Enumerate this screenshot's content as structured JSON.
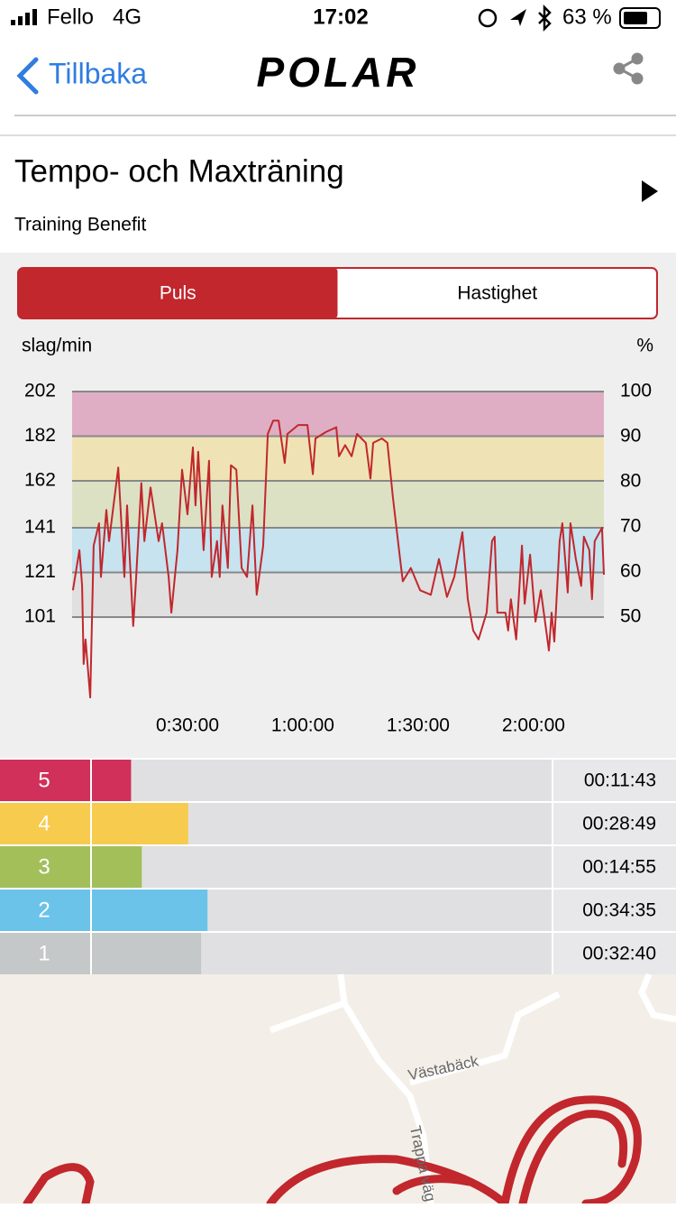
{
  "status_bar": {
    "carrier": "Fello",
    "network": "4G",
    "time": "17:02",
    "battery": "63 %"
  },
  "nav": {
    "back": "Tillbaka",
    "logo": "POLAR"
  },
  "header": {
    "title": "Tempo- och Maxträning",
    "subtitle": "Training Benefit"
  },
  "tabs": {
    "items": [
      "Puls",
      "Hastighet"
    ],
    "active": 0
  },
  "chart": {
    "type": "line",
    "y_label": "slag/min",
    "y2_label": "%",
    "color": "#c1272d",
    "xlim": [
      0,
      138.3
    ],
    "xticks": [
      {
        "value": 30,
        "label": "0:30:00"
      },
      {
        "value": 60,
        "label": "1:00:00"
      },
      {
        "value": 90,
        "label": "1:30:00"
      },
      {
        "value": 120,
        "label": "2:00:00"
      }
    ],
    "ylim": [
      60,
      202
    ],
    "yticks": [
      101,
      121,
      141,
      162,
      182,
      202
    ],
    "y2lim": [
      29.7,
      100
    ],
    "y2ticks": [
      50,
      60,
      70,
      80,
      90,
      100
    ],
    "band_colors": [
      "#e0e0e0",
      "#c6e3ef",
      "#dce1c4",
      "#efe3b5",
      "#dfaec4"
    ],
    "x": [
      0.2,
      1.9,
      2.6,
      3.0,
      3.5,
      4.7,
      5.6,
      7.0,
      7.5,
      8.9,
      9.6,
      12.0,
      13.6,
      14.3,
      15.9,
      16.6,
      18.0,
      18.8,
      20.4,
      22.5,
      23.4,
      25.1,
      25.8,
      27.4,
      28.6,
      30.0,
      31.4,
      32.1,
      32.8,
      34.2,
      35.6,
      36.3,
      37.7,
      38.4,
      39.1,
      40.5,
      41.3,
      42.7,
      44.1,
      45.5,
      46.9,
      48.0,
      49.7,
      50.9,
      52.3,
      53.7,
      55.3,
      56.0,
      58.8,
      61.2,
      62.6,
      63.3,
      66.1,
      68.7,
      69.4,
      71.0,
      72.7,
      74.1,
      76.4,
      77.6,
      78.3,
      80.6,
      82.0,
      83.4,
      85.3,
      86.0,
      88.1,
      90.5,
      93.3,
      95.4,
      97.5,
      99.4,
      101.5,
      102.9,
      104.3,
      105.7,
      107.8,
      109.2,
      109.9,
      110.6,
      112.7,
      113.4,
      114.1,
      115.5,
      117.0,
      117.7,
      119.1,
      120.5,
      121.9,
      124.0,
      124.7,
      125.4,
      126.8,
      127.5,
      128.9,
      129.6,
      131.0,
      132.4,
      133.1,
      134.5,
      135.2,
      135.9,
      137.8,
      138.3
    ],
    "values": [
      113,
      131,
      115,
      80,
      91,
      65,
      133,
      143,
      119,
      149,
      135,
      168,
      119,
      151,
      97,
      117,
      161,
      135,
      159,
      135,
      143,
      119,
      103,
      131,
      167,
      147,
      177,
      151,
      175,
      131,
      171,
      119,
      135,
      119,
      151,
      123,
      169,
      167,
      123,
      119,
      151,
      111,
      133,
      183,
      189,
      189,
      170,
      183,
      187,
      187,
      165,
      181,
      184,
      186,
      173,
      178,
      173,
      183,
      179,
      163,
      179,
      181,
      179,
      155,
      127,
      117,
      123,
      113,
      111,
      127,
      110,
      119,
      139,
      109,
      95,
      91,
      103,
      135,
      137,
      103,
      103,
      95,
      109,
      91,
      133,
      107,
      129,
      99,
      113,
      86,
      103,
      90,
      135,
      143,
      112,
      143,
      127,
      115,
      137,
      131,
      109,
      135,
      141,
      120
    ]
  },
  "zones": [
    {
      "zone": 5,
      "time": "00:11:43",
      "color": "#d0305a"
    },
    {
      "zone": 4,
      "time": "00:28:49",
      "color": "#f7cb4d"
    },
    {
      "zone": 3,
      "time": "00:14:55",
      "color": "#a3bf5a"
    },
    {
      "zone": 2,
      "time": "00:34:35",
      "color": "#6bc3ea"
    },
    {
      "zone": 1,
      "time": "00:32:40",
      "color": "#c4c8c8"
    }
  ],
  "map": {
    "labels": [
      "Västabäck",
      "Trappa väg"
    ]
  }
}
